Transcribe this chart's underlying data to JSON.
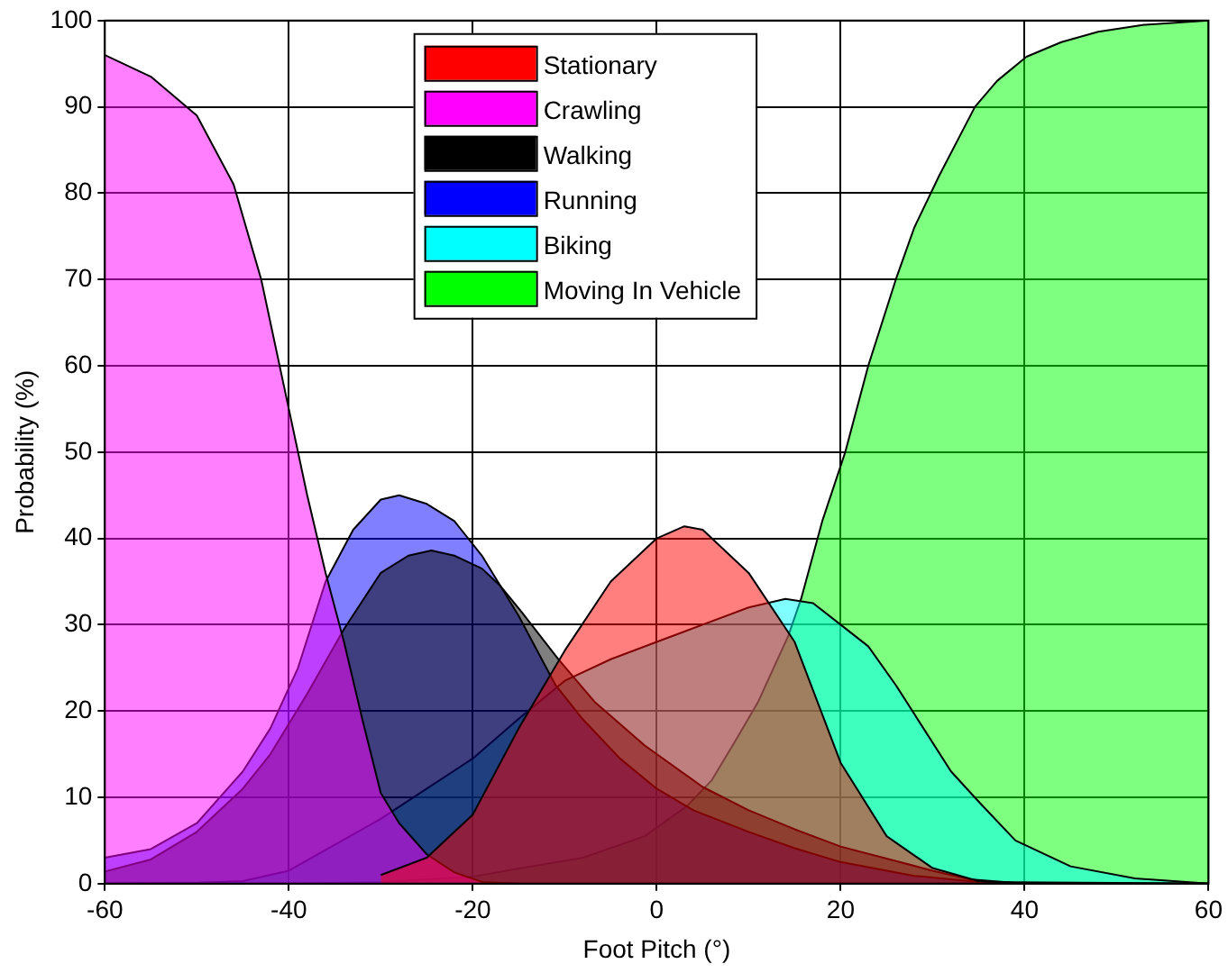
{
  "chart_data": {
    "type": "area",
    "xlabel": "Foot Pitch (°)",
    "ylabel": "Probability (%)",
    "xlim": [
      -60,
      60
    ],
    "xticks": [
      -60,
      -40,
      -20,
      0,
      20,
      40,
      60
    ],
    "ylim": [
      0,
      100
    ],
    "yticks": [
      0,
      10,
      20,
      30,
      40,
      50,
      60,
      70,
      80,
      90,
      100
    ],
    "grid": true,
    "legend": "top",
    "series": [
      {
        "name": "Stationary",
        "color": "#ff0000",
        "x": [
          -30,
          -25,
          -20,
          -15,
          -10,
          -5,
          0,
          3,
          5,
          10,
          15,
          20,
          25,
          30,
          35,
          40
        ],
        "values": [
          1,
          3,
          8,
          18,
          27,
          35,
          40,
          41.4,
          41,
          36,
          28,
          14,
          5.5,
          1.8,
          0.3,
          0
        ]
      },
      {
        "name": "Crawling",
        "color": "#ff00ff",
        "x": [
          -60,
          -55,
          -50,
          -46,
          -43,
          -40,
          -38,
          -36,
          -34,
          -32,
          -30,
          -28,
          -25,
          -22,
          -19,
          -15,
          60
        ],
        "values": [
          96,
          93.5,
          89,
          81,
          70,
          55,
          45,
          36,
          28,
          19,
          10.5,
          7,
          3.4,
          1.3,
          0.2,
          0,
          0
        ]
      },
      {
        "name": "Walking",
        "color": "#000000",
        "x": [
          -60,
          -55,
          -50,
          -45,
          -42,
          -38,
          -34,
          -30,
          -27,
          -24.5,
          -22,
          -19,
          -17,
          -14.7,
          -10.7,
          -6.7,
          -1.3,
          5,
          10,
          15,
          20,
          25,
          30,
          34,
          40,
          60
        ],
        "values": [
          1.4,
          2.8,
          6,
          11,
          15,
          22,
          29.5,
          36,
          38,
          38.6,
          38,
          36.5,
          34.5,
          31.5,
          26,
          21,
          16,
          11.2,
          8.5,
          6.3,
          4.3,
          2.9,
          1.5,
          0.5,
          0,
          0
        ]
      },
      {
        "name": "Running",
        "color": "#0000ff",
        "x": [
          -60,
          -55,
          -50,
          -45,
          -42,
          -39,
          -36,
          -33,
          -30,
          -28,
          -25,
          -22,
          -19,
          -15,
          -11,
          -8,
          -4,
          0,
          4,
          10,
          15,
          20,
          28,
          35,
          60
        ],
        "values": [
          3,
          4,
          7,
          13,
          18,
          25,
          35,
          41,
          44.5,
          45,
          44,
          42,
          38,
          31,
          23,
          19,
          14.5,
          11,
          8.5,
          6,
          4.1,
          2.5,
          0.9,
          0.2,
          0
        ]
      },
      {
        "name": "Biking",
        "color": "#00ffff",
        "x": [
          -60,
          -50,
          -45,
          -40,
          -35,
          -30,
          -25,
          -20,
          -15,
          -10,
          -5,
          0,
          5,
          10,
          14,
          17,
          20,
          23,
          26,
          29,
          32,
          35,
          39,
          45,
          52,
          60
        ],
        "values": [
          0,
          0.1,
          0.3,
          1.5,
          4.5,
          7.5,
          11,
          14.5,
          19.1,
          23.5,
          26,
          28,
          30,
          32,
          33,
          32.5,
          30,
          27.5,
          23,
          18,
          13,
          9.5,
          5,
          2,
          0.6,
          0
        ]
      },
      {
        "name": "Moving In Vehicle",
        "color": "#00ff00",
        "x": [
          -60,
          -40,
          -30,
          -20,
          -14.7,
          -8,
          -1.3,
          3.3,
          6,
          8.7,
          11,
          14.3,
          15.7,
          18,
          20.5,
          23,
          26,
          28,
          30.7,
          34.6,
          37,
          40.2,
          44,
          48,
          53,
          60
        ],
        "values": [
          0,
          0,
          0.2,
          0.8,
          1.8,
          3,
          5.5,
          9,
          12,
          16.8,
          21,
          28.7,
          33,
          42,
          50,
          60,
          70,
          76,
          82,
          90,
          93,
          95.8,
          97.5,
          98.7,
          99.5,
          100
        ]
      }
    ]
  }
}
